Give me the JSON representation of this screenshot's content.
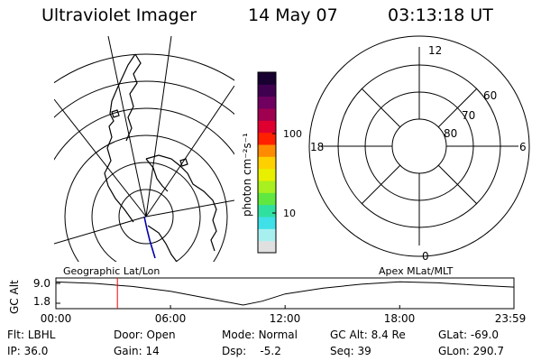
{
  "header": {
    "instrument": "Ultraviolet Imager",
    "date": "14 May 07",
    "time": "03:13:18 UT"
  },
  "geo_panel": {
    "label": "Geographic Lat/Lon"
  },
  "apex_panel": {
    "label": "Apex MLat/MLT",
    "mlt_labels": [
      "12",
      "18",
      "6",
      "0"
    ],
    "lat_labels": [
      "60",
      "70",
      "80"
    ]
  },
  "colorbar": {
    "unit_label": "photon cm⁻²s⁻¹",
    "tick_labels": [
      "100",
      "10"
    ],
    "colors": [
      "#e0e0e0",
      "#a8f0f0",
      "#40e0e8",
      "#30e0a0",
      "#60e840",
      "#a8f020",
      "#e8f000",
      "#ffd000",
      "#ff8c00",
      "#ff2000",
      "#e00030",
      "#a00050",
      "#700060",
      "#400050",
      "#180030"
    ]
  },
  "orbit_plot": {
    "ylabel": "GC Alt",
    "y_ticks": [
      "9.0",
      "1.8"
    ],
    "x_ticks": [
      "00:00",
      "06:00",
      "12:00",
      "18:00",
      "23:59"
    ],
    "current_time_color": "#ff0000"
  },
  "chart_data": {
    "type": "line",
    "title": "",
    "xlabel": "",
    "ylabel": "GC Alt",
    "xlim": [
      0,
      23.983
    ],
    "ylim": [
      1.8,
      9.0
    ],
    "x": [
      0,
      2,
      4,
      6,
      8,
      9.8,
      10.8,
      12,
      14,
      16,
      18,
      20,
      22,
      23.983
    ],
    "series": [
      {
        "values": [
          8.9,
          8.45,
          7.5,
          6.0,
          3.8,
          1.8,
          3.0,
          5.2,
          7.0,
          8.2,
          8.95,
          8.6,
          7.9,
          7.3
        ]
      }
    ],
    "markers": [
      {
        "x": 3.22
      }
    ]
  },
  "status": {
    "row1": [
      {
        "key": "Flt:",
        "val": "LBHL"
      },
      {
        "key": "Door:",
        "val": "Open"
      },
      {
        "key": "Mode:",
        "val": "Normal"
      },
      {
        "key": "GC Alt:",
        "val": "8.4 Re"
      },
      {
        "key": "GLat:",
        "val": "-69.0"
      }
    ],
    "row2": [
      {
        "key": "IP:",
        "val": "36.0"
      },
      {
        "key": "Gain:",
        "val": "14"
      },
      {
        "key": "Dsp:",
        "val": "-5.2"
      },
      {
        "key": "Seq:",
        "val": "39"
      },
      {
        "key": "GLon:",
        "val": "290.7"
      }
    ]
  }
}
